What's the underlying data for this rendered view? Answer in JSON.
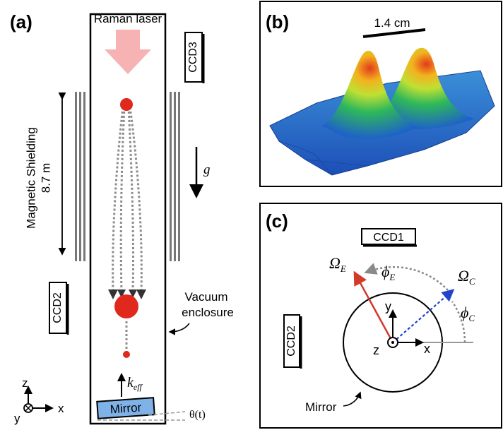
{
  "panel_a": {
    "label": "(a)",
    "raman_laser": "Raman laser",
    "ccd3": "CCD3",
    "ccd2": "CCD2",
    "shielding_line1": "Magnetic Shielding",
    "shielding_line2": "8.7 m",
    "gravity": "g",
    "vacuum_line1": "Vacuum",
    "vacuum_line2": "enclosure",
    "k_main": "k",
    "k_sub": "eff",
    "mirror": "Mirror",
    "theta": "θ(t)",
    "axis_z": "z",
    "axis_y": "y",
    "axis_x": "x"
  },
  "panel_b": {
    "label": "(b)",
    "scale": "1.4 cm"
  },
  "panel_c": {
    "label": "(c)",
    "ccd1": "CCD1",
    "ccd2": "CCD2",
    "omega": "Ω",
    "omega_e_sub": "E",
    "omega_c_sub": "C",
    "phi": "ϕ",
    "phi_e_sub": "E",
    "phi_c_sub": "C",
    "axis_y": "y",
    "axis_x": "x",
    "axis_z": "z",
    "mirror": "Mirror"
  },
  "colors": {
    "laser": "#f7b3b3",
    "atom": "#e0281c",
    "mirror_fill": "#7fb3e8",
    "omega_e": "#d23a2a",
    "omega_c": "#2244cc"
  }
}
